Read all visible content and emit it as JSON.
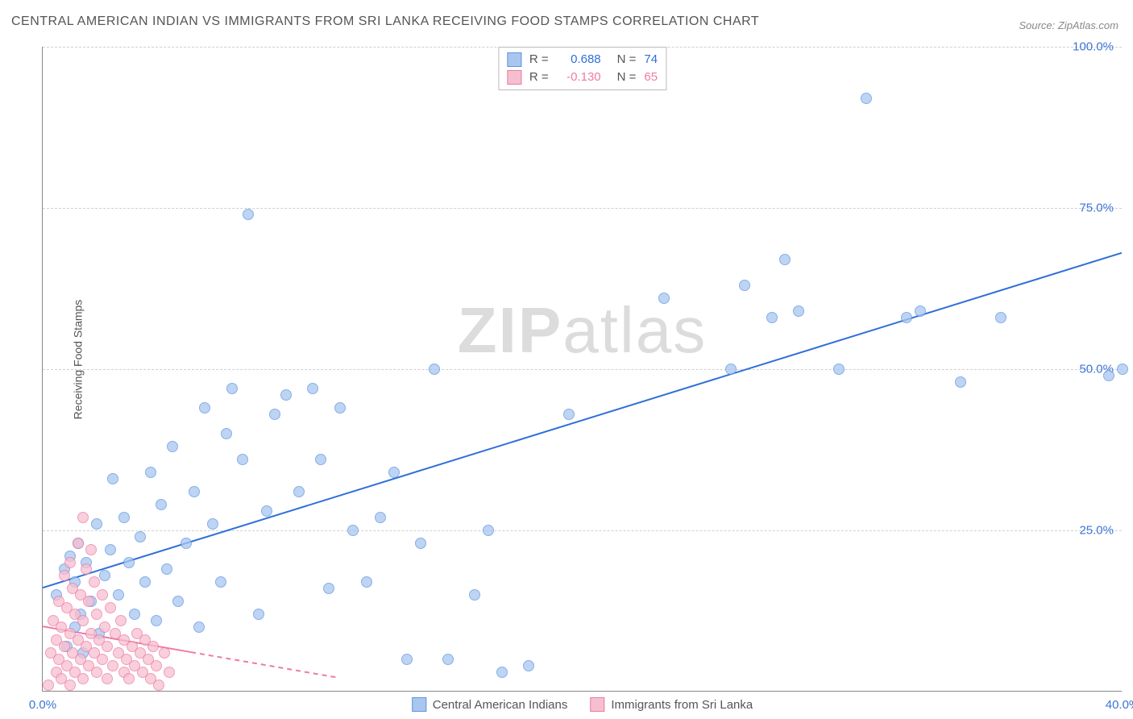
{
  "title": "CENTRAL AMERICAN INDIAN VS IMMIGRANTS FROM SRI LANKA RECEIVING FOOD STAMPS CORRELATION CHART",
  "source_label": "Source: ",
  "source_value": "ZipAtlas.com",
  "y_axis_label": "Receiving Food Stamps",
  "watermark_zip": "ZIP",
  "watermark_atlas": "atlas",
  "chart": {
    "type": "scatter",
    "xlim": [
      0,
      40
    ],
    "ylim": [
      0,
      100
    ],
    "x_ticks": [
      {
        "v": 0,
        "label": "0.0%",
        "color": "#3b74d8"
      },
      {
        "v": 40,
        "label": "40.0%",
        "color": "#3b74d8"
      }
    ],
    "y_ticks": [
      {
        "v": 25,
        "label": "25.0%",
        "color": "#3b74d8"
      },
      {
        "v": 50,
        "label": "50.0%",
        "color": "#3b74d8"
      },
      {
        "v": 75,
        "label": "75.0%",
        "color": "#3b74d8"
      },
      {
        "v": 100,
        "label": "100.0%",
        "color": "#3b74d8"
      }
    ],
    "grid_color": "#d0d0d0",
    "background_color": "#ffffff",
    "series": [
      {
        "name": "Central American Indians",
        "label": "Central American Indians",
        "color_fill": "#a9c6ef",
        "color_stroke": "#5e94e4",
        "marker_radius": 7,
        "marker_opacity": 0.75,
        "regression": {
          "x1": 0,
          "y1": 16,
          "x2": 40,
          "y2": 68,
          "stroke": "#2f6fd8",
          "width": 2,
          "dash": "none"
        },
        "stats": {
          "R": "0.688",
          "N": "74"
        },
        "points": [
          [
            0.5,
            15
          ],
          [
            0.8,
            19
          ],
          [
            0.9,
            7
          ],
          [
            1.0,
            21
          ],
          [
            1.2,
            10
          ],
          [
            1.2,
            17
          ],
          [
            1.3,
            23
          ],
          [
            1.4,
            12
          ],
          [
            1.5,
            6
          ],
          [
            1.6,
            20
          ],
          [
            1.8,
            14
          ],
          [
            2.0,
            26
          ],
          [
            2.1,
            9
          ],
          [
            2.3,
            18
          ],
          [
            2.5,
            22
          ],
          [
            2.6,
            33
          ],
          [
            2.8,
            15
          ],
          [
            3.0,
            27
          ],
          [
            3.2,
            20
          ],
          [
            3.4,
            12
          ],
          [
            3.6,
            24
          ],
          [
            3.8,
            17
          ],
          [
            4.0,
            34
          ],
          [
            4.2,
            11
          ],
          [
            4.4,
            29
          ],
          [
            4.6,
            19
          ],
          [
            4.8,
            38
          ],
          [
            5.0,
            14
          ],
          [
            5.3,
            23
          ],
          [
            5.6,
            31
          ],
          [
            5.8,
            10
          ],
          [
            6.0,
            44
          ],
          [
            6.3,
            26
          ],
          [
            6.6,
            17
          ],
          [
            6.8,
            40
          ],
          [
            7.0,
            47
          ],
          [
            7.4,
            36
          ],
          [
            7.6,
            74
          ],
          [
            8.0,
            12
          ],
          [
            8.3,
            28
          ],
          [
            8.6,
            43
          ],
          [
            9.0,
            46
          ],
          [
            9.5,
            31
          ],
          [
            10.0,
            47
          ],
          [
            10.3,
            36
          ],
          [
            10.6,
            16
          ],
          [
            11.0,
            44
          ],
          [
            11.5,
            25
          ],
          [
            12.0,
            17
          ],
          [
            12.5,
            27
          ],
          [
            13.0,
            34
          ],
          [
            13.5,
            5
          ],
          [
            14.0,
            23
          ],
          [
            14.5,
            50
          ],
          [
            15.0,
            5
          ],
          [
            16.0,
            15
          ],
          [
            16.5,
            25
          ],
          [
            17.0,
            3
          ],
          [
            18.0,
            4
          ],
          [
            19.5,
            43
          ],
          [
            23.0,
            61
          ],
          [
            25.5,
            50
          ],
          [
            26.0,
            63
          ],
          [
            27.0,
            58
          ],
          [
            27.5,
            67
          ],
          [
            28.0,
            59
          ],
          [
            29.5,
            50
          ],
          [
            30.5,
            92
          ],
          [
            32.0,
            58
          ],
          [
            32.5,
            59
          ],
          [
            34.0,
            48
          ],
          [
            35.5,
            58
          ],
          [
            39.5,
            49
          ],
          [
            40.0,
            50
          ]
        ]
      },
      {
        "name": "Immigrants from Sri Lanka",
        "label": "Immigrants from Sri Lanka",
        "color_fill": "#f6bfd0",
        "color_stroke": "#ef7ba3",
        "marker_radius": 7,
        "marker_opacity": 0.75,
        "regression": {
          "x1": 0,
          "y1": 10,
          "x2": 11,
          "y2": 2,
          "stroke": "#ef7ba3",
          "width": 2,
          "dash": "6,5",
          "solid_until_x": 5.5
        },
        "stats": {
          "R": "-0.130",
          "N": "65"
        },
        "points": [
          [
            0.2,
            1
          ],
          [
            0.3,
            6
          ],
          [
            0.4,
            11
          ],
          [
            0.5,
            3
          ],
          [
            0.5,
            8
          ],
          [
            0.6,
            14
          ],
          [
            0.6,
            5
          ],
          [
            0.7,
            2
          ],
          [
            0.7,
            10
          ],
          [
            0.8,
            18
          ],
          [
            0.8,
            7
          ],
          [
            0.9,
            4
          ],
          [
            0.9,
            13
          ],
          [
            1.0,
            1
          ],
          [
            1.0,
            9
          ],
          [
            1.0,
            20
          ],
          [
            1.1,
            6
          ],
          [
            1.1,
            16
          ],
          [
            1.2,
            3
          ],
          [
            1.2,
            12
          ],
          [
            1.3,
            8
          ],
          [
            1.3,
            23
          ],
          [
            1.4,
            5
          ],
          [
            1.4,
            15
          ],
          [
            1.5,
            2
          ],
          [
            1.5,
            11
          ],
          [
            1.5,
            27
          ],
          [
            1.6,
            7
          ],
          [
            1.6,
            19
          ],
          [
            1.7,
            4
          ],
          [
            1.7,
            14
          ],
          [
            1.8,
            9
          ],
          [
            1.8,
            22
          ],
          [
            1.9,
            6
          ],
          [
            1.9,
            17
          ],
          [
            2.0,
            3
          ],
          [
            2.0,
            12
          ],
          [
            2.1,
            8
          ],
          [
            2.2,
            5
          ],
          [
            2.2,
            15
          ],
          [
            2.3,
            10
          ],
          [
            2.4,
            2
          ],
          [
            2.4,
            7
          ],
          [
            2.5,
            13
          ],
          [
            2.6,
            4
          ],
          [
            2.7,
            9
          ],
          [
            2.8,
            6
          ],
          [
            2.9,
            11
          ],
          [
            3.0,
            3
          ],
          [
            3.0,
            8
          ],
          [
            3.1,
            5
          ],
          [
            3.2,
            2
          ],
          [
            3.3,
            7
          ],
          [
            3.4,
            4
          ],
          [
            3.5,
            9
          ],
          [
            3.6,
            6
          ],
          [
            3.7,
            3
          ],
          [
            3.8,
            8
          ],
          [
            3.9,
            5
          ],
          [
            4.0,
            2
          ],
          [
            4.1,
            7
          ],
          [
            4.2,
            4
          ],
          [
            4.3,
            1
          ],
          [
            4.5,
            6
          ],
          [
            4.7,
            3
          ]
        ]
      }
    ],
    "legend_top": {
      "r_label": "R =",
      "n_label": "N ="
    }
  }
}
